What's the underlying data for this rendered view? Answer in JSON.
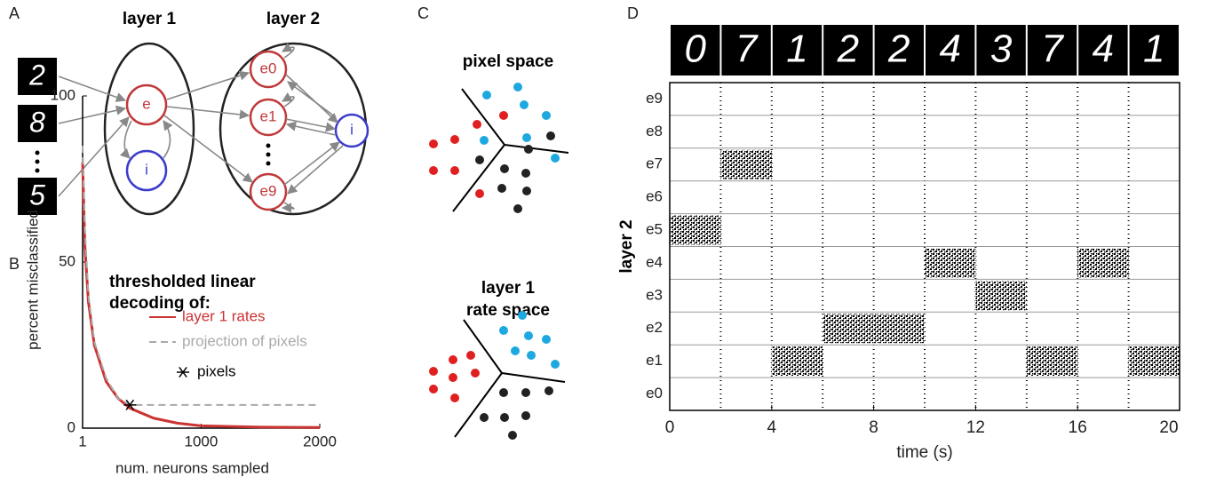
{
  "panel_labels": [
    "A",
    "B",
    "C",
    "D"
  ],
  "diagram_a": {
    "layer_titles": [
      "layer 1",
      "layer 2"
    ],
    "inputs": [
      "2",
      "8",
      "5"
    ],
    "layer1_nodes": [
      "e",
      "i"
    ],
    "layer2_nodes": [
      "e0",
      "e1",
      "e9"
    ],
    "layer2_inhibitory": "i"
  },
  "diagram_c": {
    "top_title": "pixel space",
    "bottom_title": [
      "layer 1",
      "rate space"
    ]
  },
  "chart_data": [
    {
      "type": "line",
      "title": [
        "thresholded linear",
        "decoding of:"
      ],
      "xlabel": "num. neurons sampled",
      "ylabel": "percent misclassified",
      "xlim": [
        1,
        2000
      ],
      "xticks": [
        1,
        1000,
        2000
      ],
      "ylim": [
        0,
        100
      ],
      "yticks": [
        0,
        50,
        100
      ],
      "series": [
        {
          "name": "layer 1 rates",
          "color": "#cc3333",
          "style": "solid",
          "x": [
            1,
            20,
            50,
            100,
            200,
            300,
            400,
            600,
            800,
            1000,
            1500,
            2000
          ],
          "values": [
            80,
            55,
            38,
            25,
            14,
            9,
            6,
            3,
            1.5,
            0.7,
            0.3,
            0.2
          ]
        },
        {
          "name": "projection of pixels",
          "color": "#aaaaaa",
          "style": "dashed",
          "x": [
            1,
            20,
            50,
            100,
            200,
            300,
            400,
            600,
            1000,
            2000
          ],
          "values": [
            85,
            60,
            40,
            26,
            15,
            9,
            7,
            7,
            7,
            7
          ]
        },
        {
          "name": "pixels",
          "color": "#000000",
          "style": "marker",
          "x": [
            400
          ],
          "values": [
            7
          ]
        }
      ]
    },
    {
      "type": "raster",
      "ylabel": "layer 2",
      "xlabel": "time (s)",
      "categories": [
        "e0",
        "e1",
        "e2",
        "e3",
        "e4",
        "e5",
        "e6",
        "e7",
        "e8",
        "e9"
      ],
      "xlim": [
        0,
        20
      ],
      "xticks": [
        0,
        4,
        8,
        12,
        16,
        20
      ],
      "stimuli": [
        "0",
        "7",
        "1",
        "2",
        "2",
        "4",
        "3",
        "7",
        "4",
        "1"
      ],
      "bursts": [
        {
          "category": "e5",
          "start": 0,
          "end": 2
        },
        {
          "category": "e7",
          "start": 2,
          "end": 4
        },
        {
          "category": "e1",
          "start": 4,
          "end": 6
        },
        {
          "category": "e2",
          "start": 6,
          "end": 10
        },
        {
          "category": "e4",
          "start": 10,
          "end": 12
        },
        {
          "category": "e3",
          "start": 12,
          "end": 14
        },
        {
          "category": "e1",
          "start": 14,
          "end": 16
        },
        {
          "category": "e4",
          "start": 16,
          "end": 18
        },
        {
          "category": "e1",
          "start": 18,
          "end": 20
        }
      ]
    }
  ]
}
